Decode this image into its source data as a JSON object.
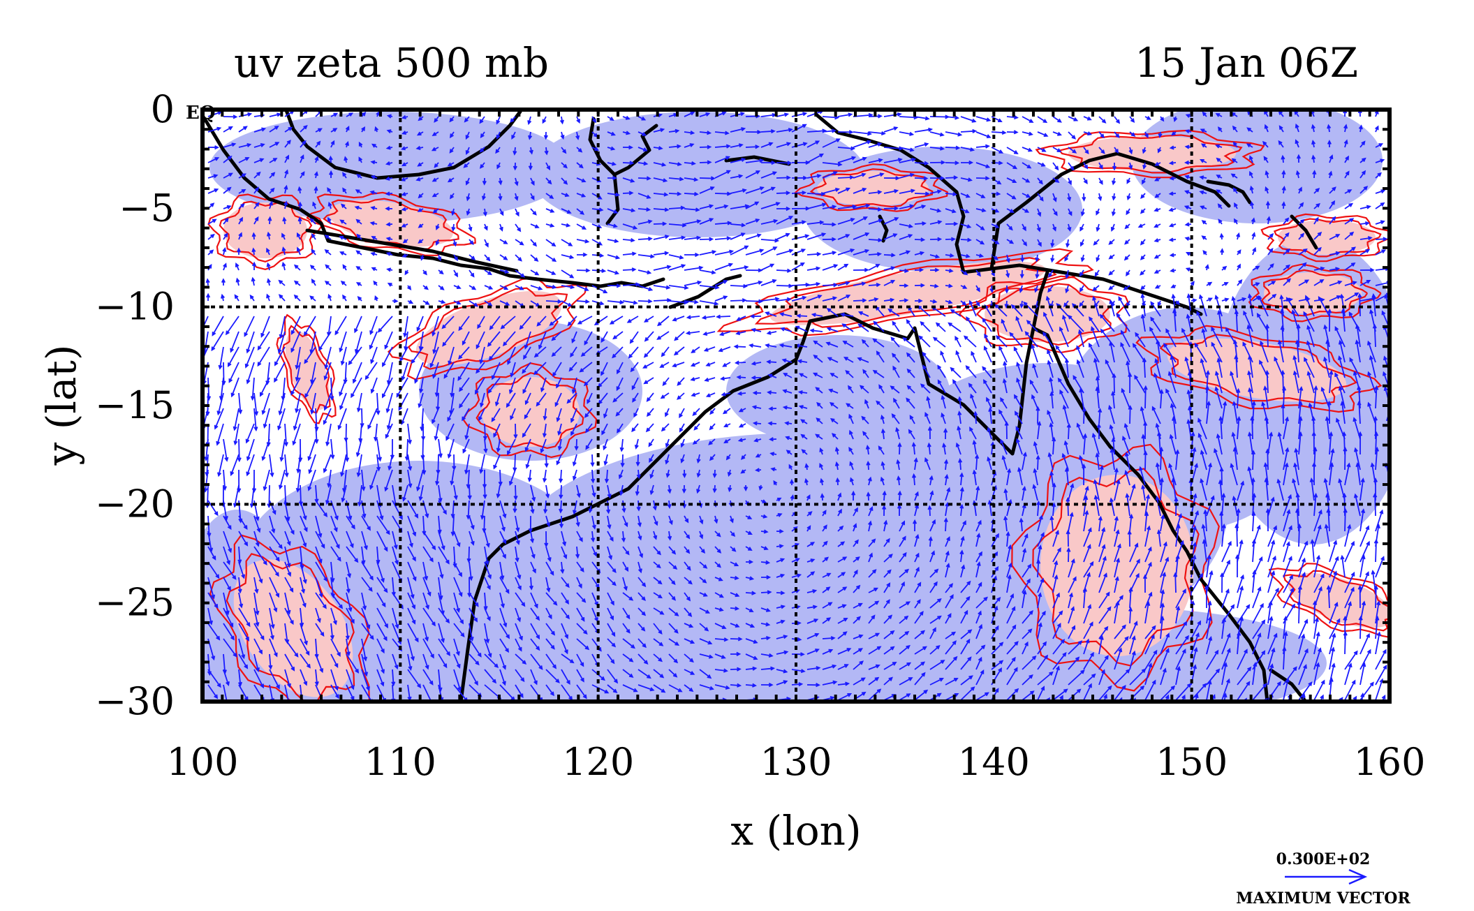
{
  "title_left": "uv zeta 500 mb",
  "title_right": "15 Jan 06Z",
  "xlabel": "x (lon)",
  "ylabel": "y (lat)",
  "x_ticks": [
    "100",
    "110",
    "120",
    "130",
    "140",
    "150",
    "160"
  ],
  "y_ticks": [
    "0",
    "−5",
    "−10",
    "−15",
    "−20",
    "−25",
    "−30"
  ],
  "eq_label": "EQ",
  "vector_legend": {
    "magnitude": "0.300E+02",
    "label": "MAXIMUM VECTOR"
  },
  "map": {
    "lon_range": [
      100,
      160
    ],
    "lat_range": [
      -30,
      0
    ],
    "grid_lons": [
      110,
      120,
      130,
      140,
      150
    ],
    "grid_lats": [
      -10,
      -20
    ],
    "field": "relative vorticity (zeta) at 500 mb with wind vectors (u, v)",
    "colors": {
      "negative_shading": "#b3b8f5",
      "positive_shading": "#f9c8c8",
      "positive_contour": "#ee1111",
      "vectors": "#1a1aff",
      "coastline": "#000000",
      "grid": "#000000"
    }
  }
}
